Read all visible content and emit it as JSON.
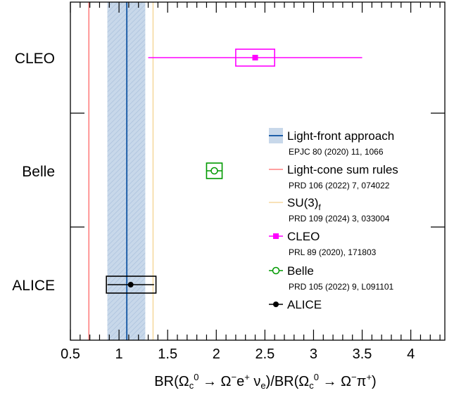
{
  "chart_data": {
    "type": "scatter",
    "orientation": "horizontal",
    "xlabel": "BR(Ω<sub>c</sub><sup>0</sup> → Ω<sup>−</sup>e<sup>+</sup> ν<sub>e</sub>)/BR(Ω<sub>c</sub><sup>0</sup> → Ω<sup>−</sup>π<sup>+</sup>)",
    "xlim": [
      0.5,
      4.35
    ],
    "x_ticks": [
      "0.5",
      "1",
      "1.5",
      "2",
      "2.5",
      "3",
      "3.5",
      "4"
    ],
    "x_tick_values": [
      0.5,
      1,
      1.5,
      2,
      2.5,
      3,
      3.5,
      4
    ],
    "categories": [
      "CLEO",
      "Belle",
      "ALICE"
    ],
    "measurements": [
      {
        "name": "CLEO",
        "value": 2.4,
        "stat_low": 1.3,
        "stat_high": 3.5,
        "syst_low": 2.2,
        "syst_high": 2.6,
        "color": "#ff00ff",
        "marker": "filled-square"
      },
      {
        "name": "Belle",
        "value": 1.98,
        "stat_low": 1.9,
        "stat_high": 2.06,
        "syst_low": 1.9,
        "syst_high": 2.06,
        "color": "#009900",
        "marker": "open-circle"
      },
      {
        "name": "ALICE",
        "value": 1.12,
        "stat_low": 0.88,
        "stat_high": 1.36,
        "syst_low": 0.87,
        "syst_high": 1.38,
        "color": "#000000",
        "marker": "filled-circle"
      }
    ],
    "theory": [
      {
        "name": "Light-front approach",
        "value": 1.08,
        "band": [
          0.88,
          1.27
        ],
        "line_color": "#1f5fa8",
        "band_color": "#c8d8ea"
      },
      {
        "name": "Light-cone sum rules",
        "value": 0.69,
        "line_color": "#ff8080"
      },
      {
        "name": "SU(3)_f",
        "value": 1.35,
        "line_color": "#f5d9a0"
      }
    ],
    "legend": {
      "position": "right",
      "entries": [
        {
          "label": "Light-front approach",
          "ref": "EPJC 80 (2020) 11, 1066",
          "style": "band",
          "color": "#1f5fa8",
          "fill": "#c8d8ea"
        },
        {
          "label": "Light-cone sum rules",
          "ref": "PRD 106 (2022) 7, 074022",
          "style": "line",
          "color": "#ff8080"
        },
        {
          "label": "SU(3)",
          "label_sub": "f",
          "ref": "PRD 109 (2024) 3, 033004",
          "style": "line",
          "color": "#f5d9a0"
        },
        {
          "label": "CLEO",
          "ref": "PRL 89 (2020), 171803",
          "style": "filled-square",
          "color": "#ff00ff"
        },
        {
          "label": "Belle",
          "ref": "PRD 105 (2022) 9, L091101",
          "style": "open-circle",
          "color": "#009900"
        },
        {
          "label": "ALICE",
          "ref": "",
          "style": "filled-circle",
          "color": "#000000"
        }
      ]
    }
  }
}
